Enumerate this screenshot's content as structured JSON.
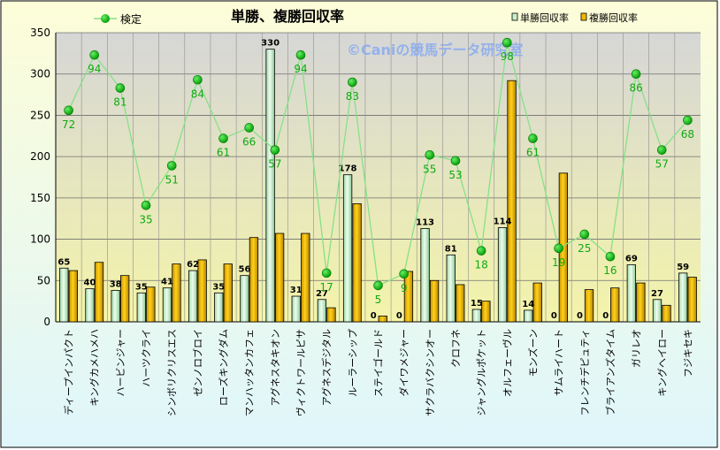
{
  "chart_data": {
    "type": "bar+line",
    "title": "単勝、複勝回収率",
    "watermark": "©Caniの競馬データ研究室",
    "xlabel": "",
    "ylabel": "",
    "ylim": [
      0,
      350
    ],
    "yticks": [
      0,
      50,
      100,
      150,
      200,
      250,
      300,
      350
    ],
    "grid": true,
    "legend_position": "top",
    "categories": [
      "ディープインパクト",
      "キングカメハメハ",
      "ハービンジャー",
      "ハーツクライ",
      "シンボリクリスエス",
      "ゼンノロブロイ",
      "ローズキングダム",
      "マンハッタンカフェ",
      "アグネスタキオン",
      "ヴィクトワールピサ",
      "アグネスデジタル",
      "ルーラーシップ",
      "ステイゴールド",
      "ダイワメジャー",
      "サクラバクシンオー",
      "クロフネ",
      "ジャングルポケット",
      "オルフェーヴル",
      "モンズーン",
      "サムライハート",
      "フレンチデピュティ",
      "ブライアンズタイム",
      "ガリレオ",
      "キングヘイロー",
      "フジキセキ"
    ],
    "series": [
      {
        "name": "単勝回収率",
        "kind": "bar",
        "color": "#c8f0c8",
        "values": [
          65,
          40,
          38,
          35,
          41,
          62,
          35,
          56,
          330,
          31,
          27,
          178,
          0,
          0,
          113,
          81,
          15,
          114,
          14,
          0,
          0,
          0,
          69,
          27,
          59
        ]
      },
      {
        "name": "複勝回収率",
        "kind": "bar",
        "color": "#f0b800",
        "values": [
          62,
          72,
          56,
          42,
          70,
          75,
          70,
          102,
          107,
          107,
          17,
          143,
          7,
          61,
          50,
          45,
          25,
          292,
          47,
          180,
          39,
          41,
          47,
          20,
          54
        ]
      },
      {
        "name": "検定",
        "kind": "line",
        "color": "#88e088",
        "marker_color": "#00aa00",
        "label_color": "#11aa11",
        "values": [
          256,
          323,
          283,
          141,
          189,
          293,
          222,
          235,
          208,
          323,
          59,
          290,
          44,
          58,
          202,
          195,
          86,
          338,
          222,
          89,
          106,
          79,
          300,
          208,
          244
        ],
        "labels": [
          72,
          94,
          81,
          35,
          51,
          84,
          61,
          66,
          57,
          94,
          17,
          83,
          5,
          9,
          55,
          53,
          18,
          98,
          61,
          19,
          25,
          16,
          86,
          57,
          68
        ]
      }
    ]
  }
}
